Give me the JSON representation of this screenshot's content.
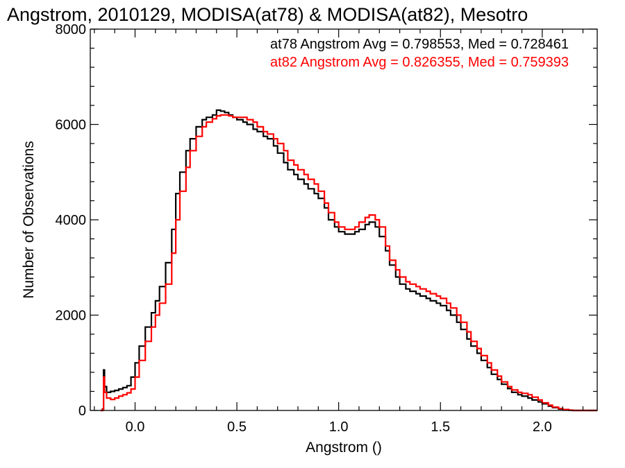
{
  "chart_data": {
    "type": "line",
    "title": "Angstrom, 2010129, MODISA(at78) & MODISA(at82), Mesotro",
    "xlabel": "Angstrom ()",
    "ylabel": "Number of Observations",
    "xlim": [
      -0.22,
      2.27
    ],
    "ylim": [
      0,
      8000
    ],
    "xticks": [
      0.0,
      0.5,
      1.0,
      1.5,
      2.0
    ],
    "xtick_labels": [
      "0.0",
      "0.5",
      "1.0",
      "1.5",
      "2.0"
    ],
    "yticks": [
      0,
      2000,
      4000,
      6000,
      8000
    ],
    "ytick_labels": [
      "0",
      "2000",
      "4000",
      "6000",
      "8000"
    ],
    "step_style": "histogram",
    "grid": false,
    "annotations": [
      {
        "text": "at78 Angstrom Avg = 0.798553, Med = 0.728461",
        "color": "#000000"
      },
      {
        "text": "at82 Angstrom Avg = 0.826355, Med = 0.759393",
        "color": "#ff0000"
      }
    ],
    "series": [
      {
        "color": "#000000",
        "x": [
          -0.17,
          -0.16,
          -0.155,
          -0.15,
          -0.14,
          -0.12,
          -0.1,
          -0.08,
          -0.06,
          -0.04,
          -0.02,
          0.0,
          0.02,
          0.05,
          0.08,
          0.1,
          0.12,
          0.15,
          0.18,
          0.2,
          0.22,
          0.25,
          0.27,
          0.3,
          0.33,
          0.35,
          0.38,
          0.4,
          0.42,
          0.44,
          0.46,
          0.48,
          0.5,
          0.53,
          0.55,
          0.58,
          0.6,
          0.63,
          0.65,
          0.68,
          0.7,
          0.73,
          0.75,
          0.78,
          0.8,
          0.83,
          0.85,
          0.88,
          0.9,
          0.93,
          0.95,
          0.98,
          1.0,
          1.03,
          1.05,
          1.08,
          1.1,
          1.13,
          1.15,
          1.18,
          1.2,
          1.23,
          1.25,
          1.28,
          1.3,
          1.33,
          1.35,
          1.38,
          1.4,
          1.43,
          1.45,
          1.48,
          1.5,
          1.53,
          1.55,
          1.58,
          1.6,
          1.63,
          1.65,
          1.68,
          1.7,
          1.73,
          1.75,
          1.78,
          1.8,
          1.83,
          1.85,
          1.88,
          1.9,
          1.93,
          1.95,
          1.98,
          2.0,
          2.03,
          2.05,
          2.08,
          2.1,
          2.13,
          2.15,
          2.18
        ],
        "values": [
          0,
          30,
          850,
          500,
          380,
          400,
          420,
          450,
          480,
          520,
          700,
          1000,
          1350,
          1750,
          2050,
          2300,
          2600,
          3100,
          3800,
          4550,
          5000,
          5450,
          5700,
          5950,
          6100,
          6150,
          6200,
          6300,
          6280,
          6250,
          6200,
          6150,
          6100,
          6050,
          6000,
          5900,
          5850,
          5750,
          5700,
          5550,
          5400,
          5200,
          5050,
          4950,
          4850,
          4750,
          4650,
          4550,
          4450,
          4250,
          4000,
          3850,
          3750,
          3700,
          3700,
          3750,
          3800,
          3900,
          3950,
          3850,
          3650,
          3350,
          3050,
          2800,
          2650,
          2550,
          2500,
          2450,
          2400,
          2350,
          2300,
          2250,
          2200,
          2100,
          2000,
          1850,
          1700,
          1500,
          1350,
          1200,
          1050,
          900,
          760,
          650,
          550,
          460,
          380,
          330,
          300,
          260,
          220,
          180,
          140,
          90,
          60,
          30,
          15,
          5,
          0,
          0
        ]
      },
      {
        "color": "#ff0000",
        "x": [
          -0.17,
          -0.16,
          -0.155,
          -0.15,
          -0.14,
          -0.12,
          -0.1,
          -0.08,
          -0.06,
          -0.04,
          -0.02,
          0.0,
          0.02,
          0.05,
          0.08,
          0.1,
          0.12,
          0.15,
          0.18,
          0.2,
          0.22,
          0.25,
          0.27,
          0.3,
          0.33,
          0.35,
          0.38,
          0.4,
          0.42,
          0.44,
          0.46,
          0.48,
          0.5,
          0.53,
          0.55,
          0.58,
          0.6,
          0.63,
          0.65,
          0.68,
          0.7,
          0.73,
          0.75,
          0.78,
          0.8,
          0.83,
          0.85,
          0.88,
          0.9,
          0.93,
          0.95,
          0.98,
          1.0,
          1.03,
          1.05,
          1.08,
          1.1,
          1.13,
          1.15,
          1.18,
          1.2,
          1.23,
          1.25,
          1.28,
          1.3,
          1.33,
          1.35,
          1.38,
          1.4,
          1.43,
          1.45,
          1.48,
          1.5,
          1.53,
          1.55,
          1.58,
          1.6,
          1.63,
          1.65,
          1.68,
          1.7,
          1.73,
          1.75,
          1.78,
          1.8,
          1.83,
          1.85,
          1.88,
          1.9,
          1.93,
          1.95,
          1.98,
          2.0,
          2.03,
          2.05,
          2.08,
          2.1,
          2.13,
          2.15,
          2.18
        ],
        "values": [
          0,
          20,
          700,
          380,
          260,
          230,
          260,
          300,
          330,
          370,
          450,
          700,
          1050,
          1450,
          1750,
          2000,
          2250,
          2650,
          3300,
          4000,
          4600,
          5100,
          5450,
          5750,
          5950,
          6050,
          6120,
          6180,
          6200,
          6200,
          6180,
          6150,
          6150,
          6150,
          6100,
          6050,
          5950,
          5850,
          5800,
          5700,
          5600,
          5450,
          5250,
          5150,
          5050,
          4950,
          4850,
          4750,
          4600,
          4350,
          4150,
          3950,
          3850,
          3800,
          3800,
          3850,
          3950,
          4050,
          4100,
          4000,
          3850,
          3450,
          3150,
          2950,
          2800,
          2700,
          2650,
          2600,
          2550,
          2500,
          2450,
          2400,
          2350,
          2250,
          2150,
          2000,
          1850,
          1650,
          1450,
          1300,
          1150,
          1000,
          850,
          720,
          600,
          500,
          430,
          380,
          360,
          330,
          280,
          220,
          160,
          110,
          70,
          40,
          20,
          8,
          0,
          0
        ]
      }
    ]
  }
}
